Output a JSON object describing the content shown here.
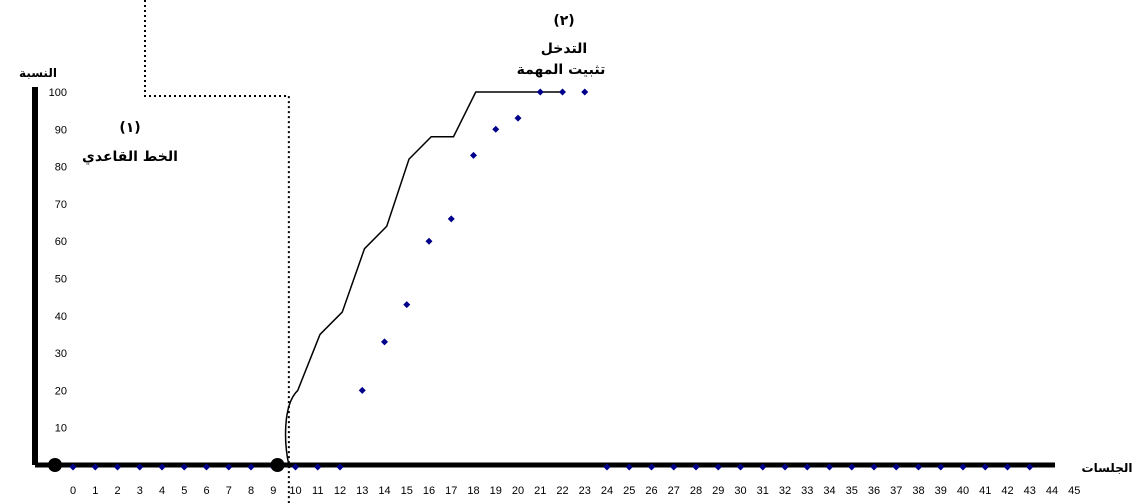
{
  "chart_data": {
    "type": "line",
    "ylabel": "النسبة",
    "xlabel": "الجلسات",
    "xlim": [
      0,
      45
    ],
    "ylim": [
      0,
      100
    ],
    "x_ticks": [
      0,
      1,
      2,
      3,
      4,
      5,
      6,
      7,
      8,
      9,
      10,
      11,
      12,
      13,
      14,
      15,
      16,
      17,
      18,
      19,
      20,
      21,
      22,
      23,
      24,
      25,
      26,
      27,
      28,
      29,
      30,
      31,
      32,
      33,
      34,
      35,
      36,
      37,
      38,
      39,
      40,
      41,
      42,
      43,
      44,
      45
    ],
    "y_ticks": [
      10,
      20,
      30,
      40,
      50,
      60,
      70,
      80,
      90,
      100
    ],
    "phases": [
      {
        "number": "(١)",
        "label": "الخط القاعدي",
        "start": 0,
        "end": 10
      },
      {
        "number": "(٢)",
        "label": "التدخل",
        "sublabel": "تثبيت المهمة",
        "start": 11,
        "end": 23
      }
    ],
    "series": [
      {
        "style": "diamond-points",
        "color": "#00008B",
        "x": [
          0,
          1,
          2,
          3,
          4,
          5,
          6,
          7,
          8,
          9,
          10,
          11,
          12,
          13,
          14,
          15,
          16,
          17,
          18,
          19,
          20,
          21,
          22,
          23,
          24,
          25,
          26,
          27,
          28,
          29,
          30,
          31,
          32,
          33,
          34,
          35,
          36,
          37,
          38,
          39,
          40,
          41,
          42,
          43
        ],
        "values": [
          0,
          0,
          0,
          0,
          0,
          0,
          0,
          0,
          0,
          0,
          0,
          0,
          0,
          20,
          33,
          43,
          60,
          66,
          83,
          90,
          93,
          100,
          100,
          100,
          0,
          0,
          0,
          0,
          0,
          0,
          0,
          0,
          0,
          0,
          0,
          0,
          0,
          0,
          0,
          0,
          0,
          0,
          0,
          0
        ]
      },
      {
        "style": "solid-line",
        "color": "#000000",
        "x": [
          11,
          12,
          13,
          14,
          15,
          16,
          17,
          18,
          19,
          20,
          21,
          22,
          23
        ],
        "values": [
          20,
          35,
          41,
          58,
          64,
          82,
          88,
          88,
          100,
          100,
          100,
          100,
          100
        ]
      }
    ],
    "large_points": {
      "color": "#000000",
      "x": [
        0,
        10
      ],
      "values": [
        0,
        0
      ]
    },
    "grid": false,
    "legend": "none"
  }
}
